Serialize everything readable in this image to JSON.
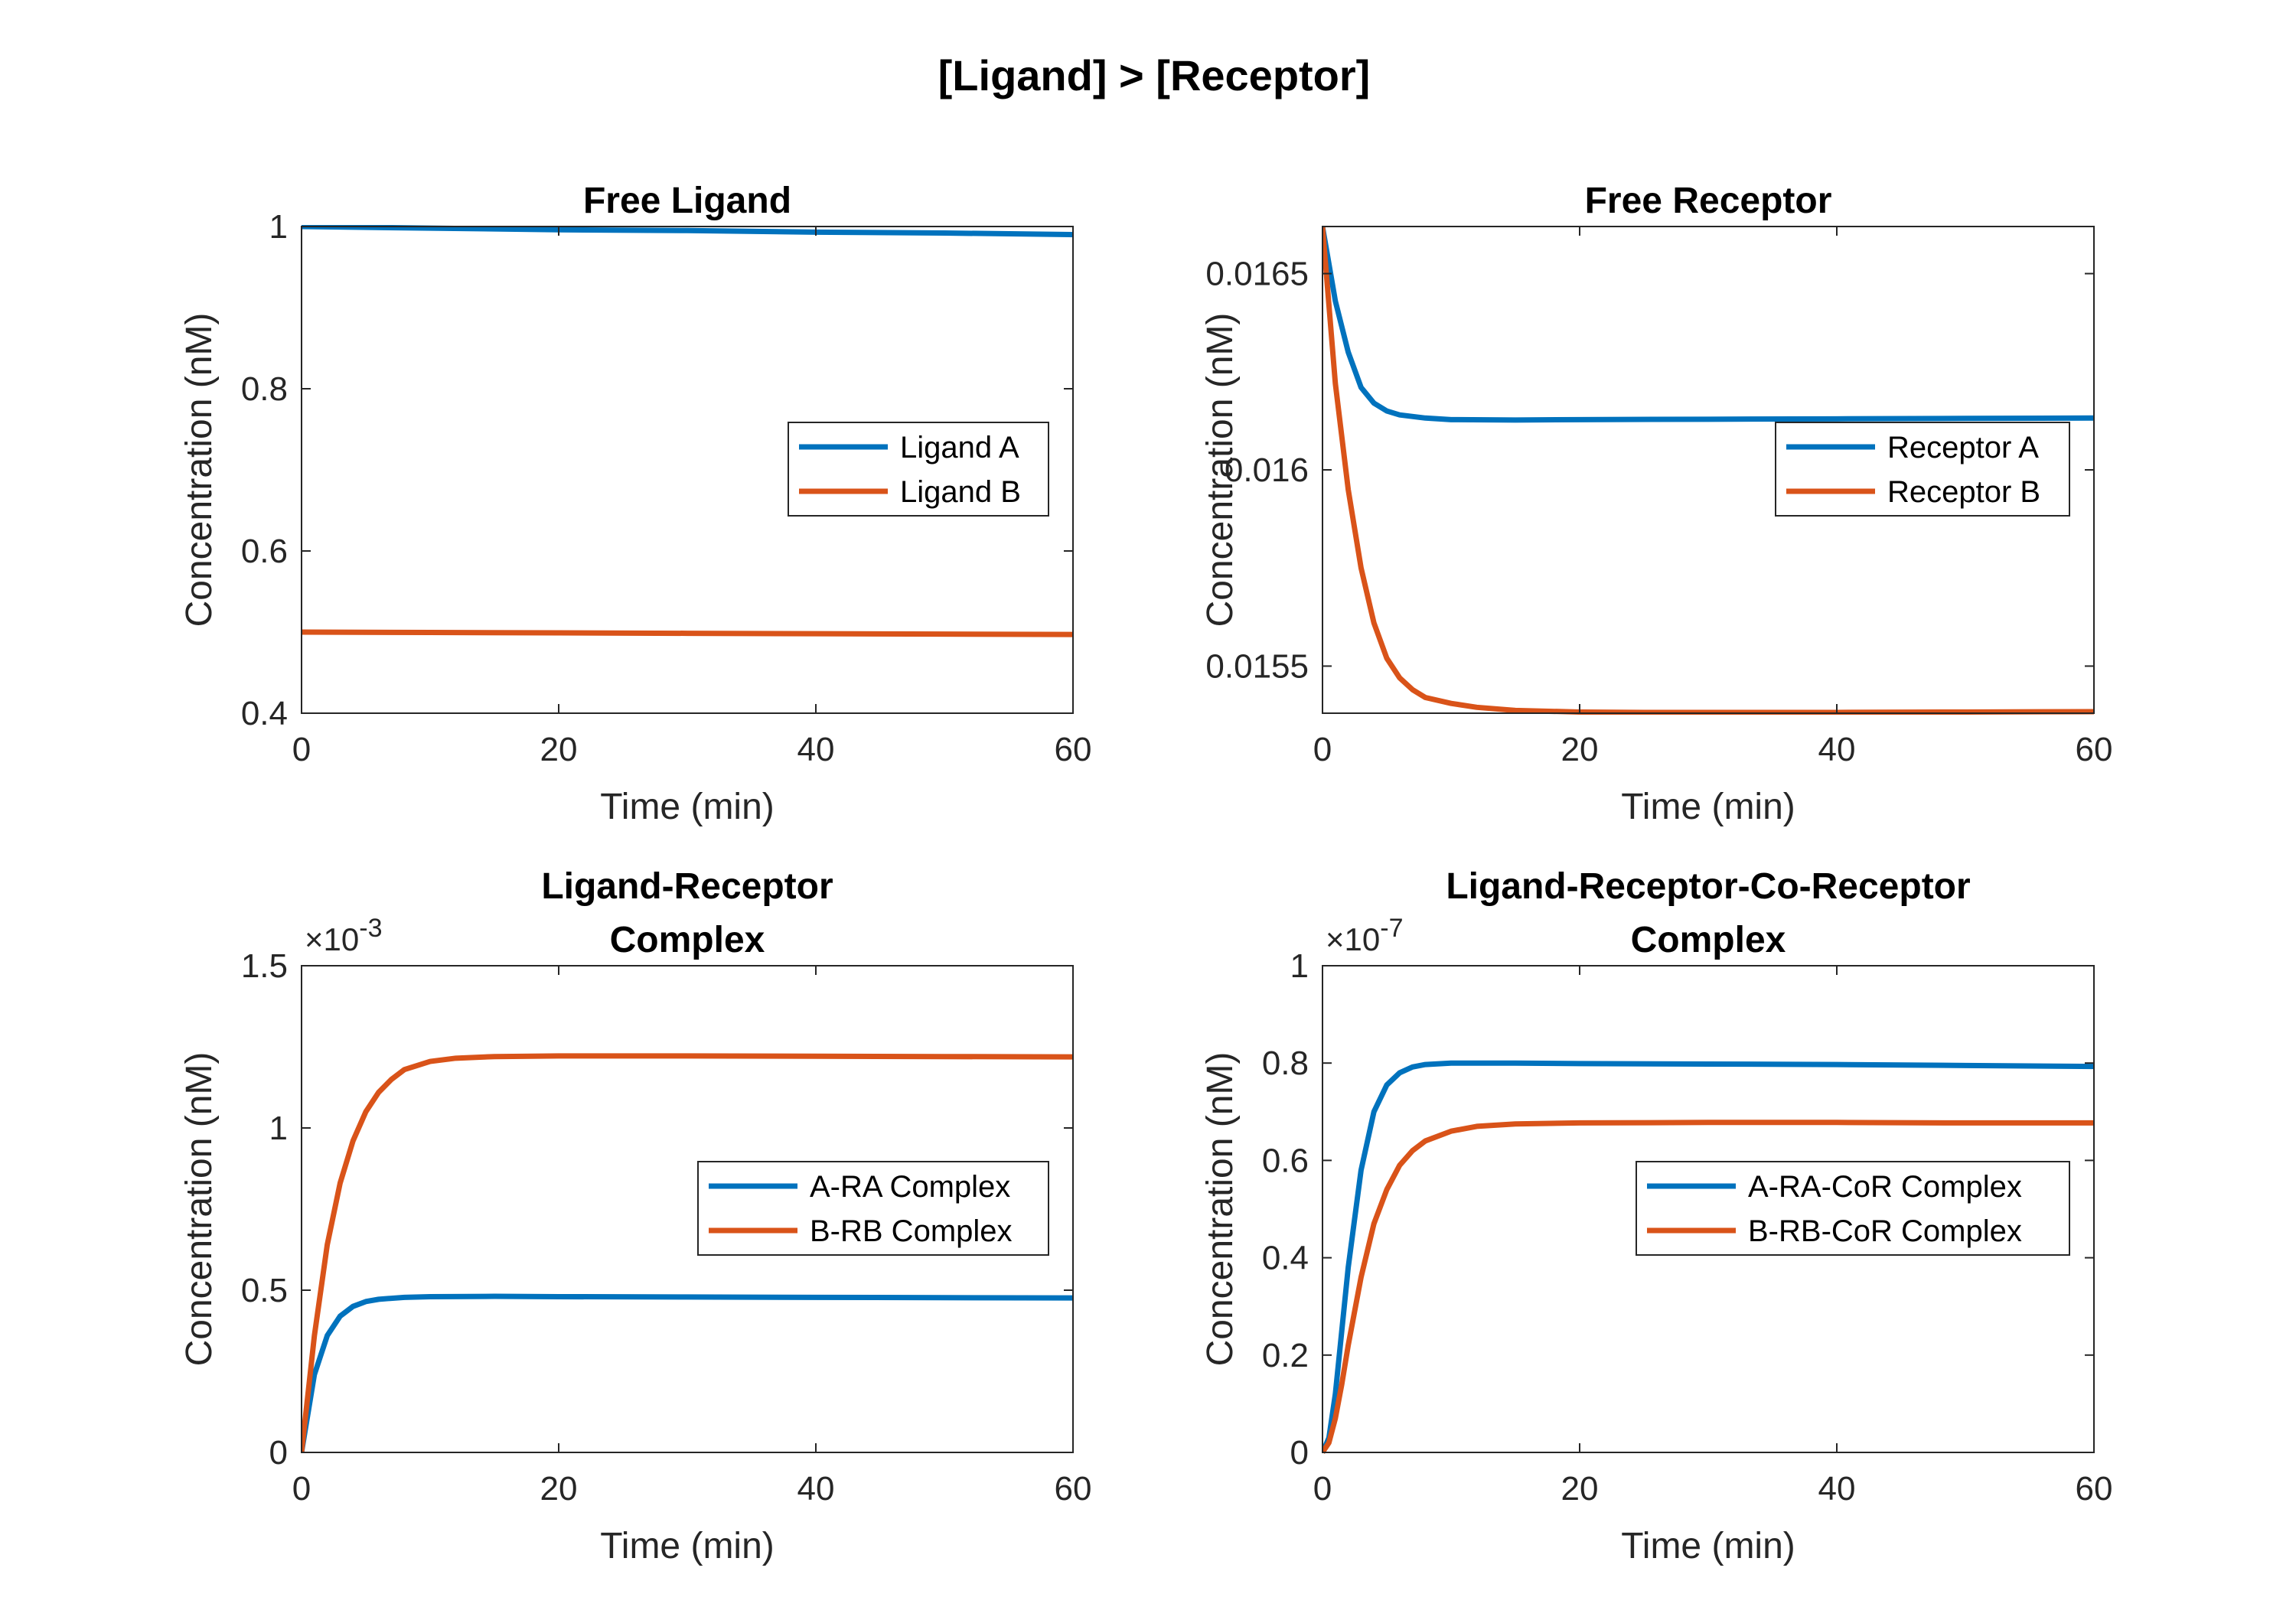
{
  "figure": {
    "title": "[Ligand] > [Receptor]"
  },
  "chart_data": [
    {
      "type": "line",
      "title": [
        "Free Ligand"
      ],
      "xlabel": "Time (min)",
      "ylabel": "Concentration (nM)",
      "xlim": [
        0,
        60
      ],
      "ylim": [
        0.4,
        1.0
      ],
      "xticks": [
        0,
        20,
        40,
        60
      ],
      "yticks": [
        0.4,
        0.6,
        0.8,
        1.0
      ],
      "ytick_labels": [
        "0.4",
        "0.6",
        "0.8",
        "1"
      ],
      "exponent_label": "",
      "legend": "right",
      "series": [
        {
          "name": "Ligand A",
          "color": "#0072BD",
          "x": [
            0,
            10,
            20,
            30,
            40,
            50,
            60
          ],
          "y": [
            1.0,
            0.998,
            0.996,
            0.995,
            0.993,
            0.992,
            0.99
          ]
        },
        {
          "name": "Ligand B",
          "color": "#D95319",
          "x": [
            0,
            10,
            20,
            30,
            40,
            50,
            60
          ],
          "y": [
            0.5,
            0.4995,
            0.499,
            0.4985,
            0.498,
            0.4975,
            0.497
          ]
        }
      ]
    },
    {
      "type": "line",
      "title": [
        "Free Receptor"
      ],
      "xlabel": "Time (min)",
      "ylabel": "Concentration (nM)",
      "xlim": [
        0,
        60
      ],
      "ylim": [
        0.01538,
        0.01662
      ],
      "xticks": [
        0,
        20,
        40,
        60
      ],
      "yticks": [
        0.0155,
        0.016,
        0.0165
      ],
      "ytick_labels": [
        "0.0155",
        "0.016",
        "0.0165"
      ],
      "exponent_label": "",
      "legend": "right",
      "series": [
        {
          "name": "Receptor A",
          "color": "#0072BD",
          "x": [
            0,
            1,
            2,
            3,
            4,
            5,
            6,
            8,
            10,
            15,
            20,
            30,
            40,
            50,
            60
          ],
          "y": [
            0.01662,
            0.01643,
            0.0163,
            0.01621,
            0.01617,
            0.01615,
            0.01614,
            0.016132,
            0.016128,
            0.016127,
            0.016128,
            0.016129,
            0.01613,
            0.016131,
            0.016132
          ]
        },
        {
          "name": "Receptor B",
          "color": "#D95319",
          "x": [
            0,
            1,
            2,
            3,
            4,
            5,
            6,
            7,
            8,
            10,
            12,
            15,
            20,
            25,
            30,
            40,
            50,
            60
          ],
          "y": [
            0.01662,
            0.01622,
            0.01595,
            0.01575,
            0.01561,
            0.01552,
            0.01547,
            0.01544,
            0.01542,
            0.015405,
            0.015395,
            0.015387,
            0.015383,
            0.015382,
            0.015382,
            0.015382,
            0.015383,
            0.015384
          ]
        }
      ]
    },
    {
      "type": "line",
      "title": [
        "Ligand-Receptor",
        "Complex"
      ],
      "xlabel": "Time (min)",
      "ylabel": "Concentration (nM)",
      "xlim": [
        0,
        60
      ],
      "ylim": [
        0,
        1.5
      ],
      "xticks": [
        0,
        20,
        40,
        60
      ],
      "yticks": [
        0,
        0.5,
        1.0,
        1.5
      ],
      "ytick_labels": [
        "0",
        "0.5",
        "1",
        "1.5"
      ],
      "exponent_label": "×10",
      "exponent_power": "-3",
      "legend": "right",
      "series": [
        {
          "name": "A-RA Complex",
          "color": "#0072BD",
          "x": [
            0,
            1,
            2,
            3,
            4,
            5,
            6,
            8,
            10,
            15,
            20,
            30,
            40,
            50,
            60
          ],
          "y": [
            0,
            0.24,
            0.36,
            0.42,
            0.45,
            0.465,
            0.472,
            0.478,
            0.48,
            0.481,
            0.48,
            0.479,
            0.478,
            0.477,
            0.476
          ]
        },
        {
          "name": "B-RB Complex",
          "color": "#D95319",
          "x": [
            0,
            1,
            2,
            3,
            4,
            5,
            6,
            7,
            8,
            10,
            12,
            15,
            20,
            25,
            30,
            40,
            50,
            60
          ],
          "y": [
            0,
            0.36,
            0.64,
            0.83,
            0.96,
            1.05,
            1.11,
            1.15,
            1.18,
            1.205,
            1.215,
            1.22,
            1.222,
            1.222,
            1.222,
            1.221,
            1.22,
            1.219
          ]
        }
      ]
    },
    {
      "type": "line",
      "title": [
        "Ligand-Receptor-Co-Receptor",
        "Complex"
      ],
      "xlabel": "Time (min)",
      "ylabel": "Concentration (nM)",
      "xlim": [
        0,
        60
      ],
      "ylim": [
        0,
        1.0
      ],
      "xticks": [
        0,
        20,
        40,
        60
      ],
      "yticks": [
        0,
        0.2,
        0.4,
        0.6,
        0.8,
        1.0
      ],
      "ytick_labels": [
        "0",
        "0.2",
        "0.4",
        "0.6",
        "0.8",
        "1"
      ],
      "exponent_label": "×10",
      "exponent_power": "-7",
      "legend": "right",
      "series": [
        {
          "name": "A-RA-CoR Complex",
          "color": "#0072BD",
          "x": [
            0,
            0.5,
            1,
            1.5,
            2,
            3,
            4,
            5,
            6,
            7,
            8,
            10,
            15,
            20,
            30,
            40,
            50,
            60
          ],
          "y": [
            0,
            0.03,
            0.12,
            0.25,
            0.38,
            0.58,
            0.7,
            0.755,
            0.78,
            0.792,
            0.797,
            0.8,
            0.8,
            0.799,
            0.798,
            0.797,
            0.795,
            0.793
          ]
        },
        {
          "name": "B-RB-CoR Complex",
          "color": "#D95319",
          "x": [
            0,
            0.5,
            1,
            1.5,
            2,
            3,
            4,
            5,
            6,
            7,
            8,
            10,
            12,
            15,
            20,
            30,
            40,
            50,
            60
          ],
          "y": [
            0,
            0.02,
            0.07,
            0.14,
            0.22,
            0.36,
            0.47,
            0.54,
            0.59,
            0.62,
            0.64,
            0.66,
            0.67,
            0.675,
            0.677,
            0.678,
            0.678,
            0.677,
            0.677
          ]
        }
      ]
    }
  ]
}
